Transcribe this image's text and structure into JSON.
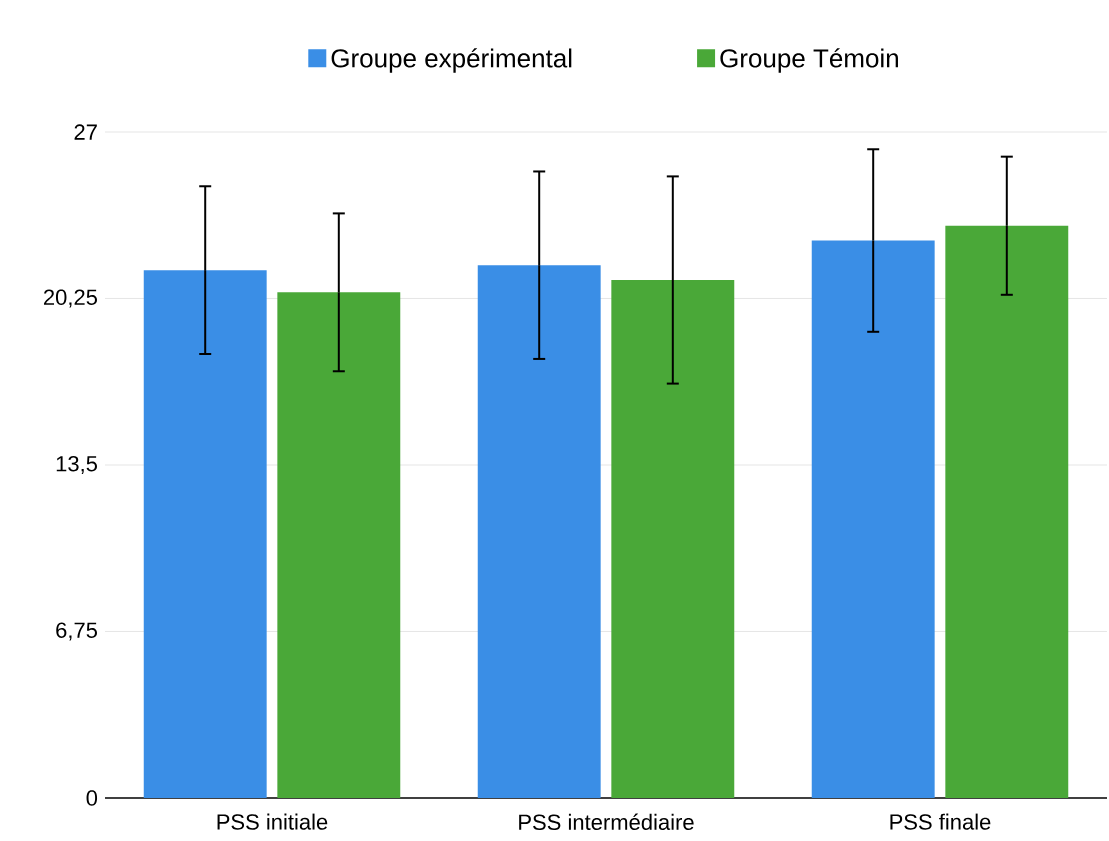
{
  "chart_data": {
    "type": "bar",
    "categories": [
      "PSS initiale",
      "PSS intermédiaire",
      "PSS finale"
    ],
    "series": [
      {
        "name": "Groupe expérimental",
        "color": "#3a8ee6",
        "values": [
          21.4,
          21.6,
          22.6
        ],
        "errors": [
          3.4,
          3.8,
          3.7
        ]
      },
      {
        "name": "Groupe Témoin",
        "color": "#4aa838",
        "values": [
          20.5,
          21.0,
          23.2
        ],
        "errors": [
          3.2,
          4.2,
          2.8
        ]
      }
    ],
    "ylim": [
      0,
      27
    ],
    "yticks": [
      0,
      {
        "value": 6.75,
        "label": "6,75"
      },
      {
        "value": 13.5,
        "label": "13,5"
      },
      {
        "value": 20.25,
        "label": "20,25"
      },
      27
    ],
    "grid": "y",
    "legend": "top"
  }
}
